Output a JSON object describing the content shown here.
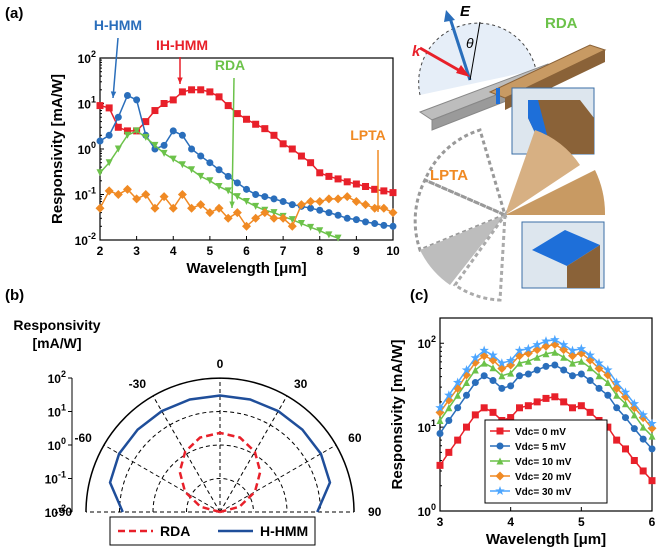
{
  "chart_data": [
    {
      "type": "line",
      "panel_label": "(a)",
      "xlabel": "Wavelength [μm]",
      "ylabel": "Responsivity [mA/W]",
      "xlim": [
        2,
        10
      ],
      "xticks": [
        2,
        3,
        4,
        5,
        6,
        7,
        8,
        9,
        10
      ],
      "ylog": true,
      "ylim": [
        0.01,
        100
      ],
      "yticks": [
        {
          "value": 0.01,
          "label": "10",
          "exponent": "-2"
        },
        {
          "value": 0.1,
          "label": "10",
          "exponent": "-1"
        },
        {
          "value": 1,
          "label": "10",
          "exponent": "0"
        },
        {
          "value": 10,
          "label": "10",
          "exponent": "1"
        },
        {
          "value": 100,
          "label": "10",
          "exponent": "2"
        }
      ],
      "x": [
        2,
        2.25,
        2.5,
        2.75,
        3,
        3.25,
        3.5,
        3.75,
        4,
        4.25,
        4.5,
        4.75,
        5,
        5.25,
        5.5,
        5.75,
        6,
        6.25,
        6.5,
        6.75,
        7,
        7.25,
        7.5,
        7.75,
        8,
        8.25,
        8.5,
        8.75,
        9,
        9.25,
        9.5,
        9.75,
        10
      ],
      "series": [
        {
          "name": "IH-HMM",
          "color": "#e8202a",
          "marker": "square",
          "values": [
            9,
            8,
            3,
            2.5,
            2.5,
            4,
            7,
            10,
            12,
            18,
            20,
            20,
            18,
            14,
            9,
            6,
            4.5,
            3.5,
            2.8,
            2,
            1.3,
            1,
            0.7,
            0.5,
            0.3,
            0.25,
            0.22,
            0.19,
            0.17,
            0.15,
            0.13,
            0.12,
            0.11
          ]
        },
        {
          "name": "H-HMM",
          "color": "#2a6ebb",
          "marker": "circle",
          "values": [
            1.5,
            2,
            5,
            15,
            12,
            2,
            1,
            1.2,
            2.5,
            2,
            1,
            0.7,
            0.5,
            0.35,
            0.25,
            0.18,
            0.13,
            0.1,
            0.09,
            0.08,
            0.07,
            0.06,
            0.055,
            0.05,
            0.045,
            0.04,
            0.035,
            0.03,
            0.028,
            0.025,
            0.023,
            0.021,
            0.02
          ]
        },
        {
          "name": "RDA",
          "color": "#6cc24a",
          "marker": "triangle-down",
          "values": [
            0.3,
            0.5,
            1,
            2,
            2.5,
            1.8,
            1.2,
            0.8,
            0.6,
            0.45,
            0.35,
            0.25,
            0.2,
            0.15,
            0.12,
            0.09,
            0.07,
            0.055,
            0.045,
            0.04,
            0.033,
            0.028,
            0.023,
            0.019,
            0.016,
            0.013,
            0.011,
            null,
            null,
            null,
            null,
            null,
            null
          ]
        },
        {
          "name": "LPTA",
          "color": "#f08a24",
          "marker": "diamond",
          "values": [
            0.05,
            0.12,
            0.1,
            0.13,
            0.08,
            0.1,
            0.05,
            0.09,
            0.05,
            0.1,
            0.05,
            0.06,
            0.04,
            0.05,
            0.03,
            0.04,
            0.02,
            0.03,
            0.04,
            0.03,
            0.03,
            0.02,
            0.06,
            0.07,
            0.07,
            0.08,
            0.08,
            0.09,
            0.07,
            0.06,
            0.05,
            0.05,
            0.04
          ]
        }
      ],
      "annotations": [
        {
          "text": "H-HMM",
          "color": "#2a6ebb"
        },
        {
          "text": "IH-HMM",
          "color": "#e8202a"
        },
        {
          "text": "RDA",
          "color": "#6cc24a"
        },
        {
          "text": "LPTA",
          "color": "#f08a24"
        }
      ]
    },
    {
      "type": "polar",
      "panel_label": "(b)",
      "ylabel": [
        "Responsivity",
        "[mA/W]"
      ],
      "rlim": [
        0.01,
        100
      ],
      "rticks": [
        {
          "value": 0.01,
          "label": "10",
          "exponent": "-2"
        },
        {
          "value": 0.1,
          "label": "10",
          "exponent": "-1"
        },
        {
          "value": 1,
          "label": "10",
          "exponent": "0"
        },
        {
          "value": 10,
          "label": "10",
          "exponent": "1"
        },
        {
          "value": 100,
          "label": "10",
          "exponent": "2"
        }
      ],
      "thetaticks": [
        -90,
        -60,
        -30,
        0,
        30,
        60,
        90
      ],
      "theta": [
        -90,
        -75,
        -60,
        -45,
        -30,
        -15,
        0,
        15,
        30,
        45,
        60,
        75,
        90
      ],
      "legend": "below",
      "series": [
        {
          "name": "RDA",
          "color": "#e8202a",
          "dash": true,
          "values": [
            0.01,
            0.04,
            0.16,
            0.5,
            1.2,
            2,
            2.3,
            2,
            1.2,
            0.5,
            0.16,
            0.04,
            0.01
          ]
        },
        {
          "name": "H-HMM",
          "color": "#1f4e9a",
          "dash": false,
          "values": [
            8,
            25,
            30,
            30,
            30,
            30,
            30,
            30,
            30,
            30,
            30,
            25,
            8
          ]
        }
      ]
    },
    {
      "type": "line",
      "panel_label": "(c)",
      "xlabel": "Wavelength [μm]",
      "ylabel": "Responsivity [mA/W]",
      "xlim": [
        3,
        6
      ],
      "xticks": [
        3,
        4,
        5,
        6
      ],
      "ylog": true,
      "ylim": [
        1,
        200
      ],
      "yticks": [
        {
          "value": 1,
          "label": "10",
          "exponent": "0"
        },
        {
          "value": 10,
          "label": "10",
          "exponent": "1"
        },
        {
          "value": 100,
          "label": "10",
          "exponent": "2"
        }
      ],
      "legend": "lower center",
      "x": [
        3,
        3.125,
        3.25,
        3.375,
        3.5,
        3.625,
        3.75,
        3.875,
        4,
        4.125,
        4.25,
        4.375,
        4.5,
        4.625,
        4.75,
        4.875,
        5,
        5.125,
        5.25,
        5.375,
        5.5,
        5.625,
        5.75,
        5.875,
        6
      ],
      "series": [
        {
          "name": "Vdc= 0 mV",
          "color": "#e8202a",
          "marker": "square",
          "values": [
            3.5,
            5,
            7,
            10,
            14,
            17,
            15,
            12,
            13,
            17,
            18,
            20,
            22,
            23,
            20,
            17,
            18,
            15,
            12,
            10,
            7,
            5.5,
            4,
            3,
            2.3
          ]
        },
        {
          "name": "Vdc= 5 mV",
          "color": "#2a6ebb",
          "marker": "circle",
          "values": [
            8.4,
            12,
            17,
            24,
            34,
            41,
            36,
            29,
            31,
            41,
            43,
            48,
            53,
            55,
            48,
            41,
            43,
            36,
            29,
            24,
            17,
            13,
            9.6,
            7.2,
            5.5
          ]
        },
        {
          "name": "Vdc= 10 mV",
          "color": "#6cc24a",
          "marker": "triangle-up",
          "values": [
            12,
            17,
            24,
            34,
            48,
            58,
            51,
            41,
            44,
            58,
            61,
            68,
            75,
            78,
            68,
            58,
            61,
            51,
            41,
            34,
            24,
            19,
            14,
            10,
            7.8
          ]
        },
        {
          "name": "Vdc= 20 mV",
          "color": "#f08a24",
          "marker": "diamond",
          "values": [
            15,
            21,
            29,
            42,
            59,
            71,
            63,
            50,
            55,
            71,
            76,
            84,
            92,
            97,
            84,
            71,
            76,
            63,
            50,
            42,
            29,
            23,
            17,
            13,
            9.7
          ]
        },
        {
          "name": "Vdc= 30 mV",
          "color": "#4da6ff",
          "marker": "star",
          "values": [
            17,
            24,
            34,
            48,
            67,
            82,
            72,
            58,
            62,
            82,
            86,
            96,
            106,
            110,
            96,
            82,
            86,
            72,
            58,
            48,
            34,
            26,
            19,
            14,
            11
          ]
        }
      ]
    }
  ],
  "illustrations": {
    "rda": {
      "label": "RDA",
      "field": "E",
      "wavevector": "k",
      "angle": "θ"
    },
    "lpta": {
      "label": "LPTA"
    }
  }
}
